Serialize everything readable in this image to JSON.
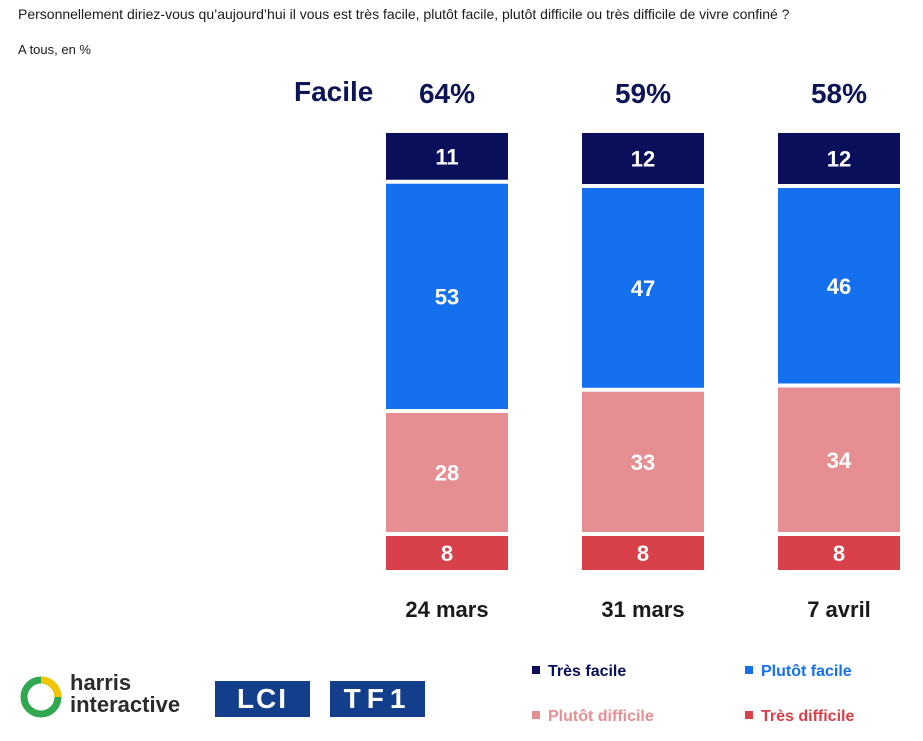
{
  "header": {
    "question": "Personnellement diriez-vous qu’aujourd’hui il vous est très facile, plutôt facile, plutôt difficile ou très difficile de vivre confiné ?",
    "subtitle": "A tous, en %",
    "facile_label": "Facile"
  },
  "chart_data": {
    "type": "bar",
    "stacked": true,
    "categories": [
      "24 mars",
      "31 mars",
      "7 avril"
    ],
    "totals_facile": [
      "64%",
      "59%",
      "58%"
    ],
    "series": [
      {
        "name": "Très facile",
        "values": [
          11,
          12,
          12
        ],
        "color": "#0a0f5c"
      },
      {
        "name": "Plutôt facile",
        "values": [
          53,
          47,
          46
        ],
        "color": "#1570ef"
      },
      {
        "name": "Plutôt difficile",
        "values": [
          28,
          33,
          34
        ],
        "color": "#e58f92"
      },
      {
        "name": "Très difficile",
        "values": [
          8,
          8,
          8
        ],
        "color": "#d8404a"
      }
    ]
  },
  "legend": {
    "items": [
      {
        "label": "Très facile",
        "color": "#0a0f5c"
      },
      {
        "label": "Plutôt facile",
        "color": "#1570ef"
      },
      {
        "label": "Plutôt difficile",
        "color": "#e58f92"
      },
      {
        "label": "Très difficile",
        "color": "#d8404a"
      }
    ]
  },
  "logos": {
    "harris_line1": "harris",
    "harris_line2": "interactive",
    "lci": "LCI",
    "tf1": "TF1"
  }
}
